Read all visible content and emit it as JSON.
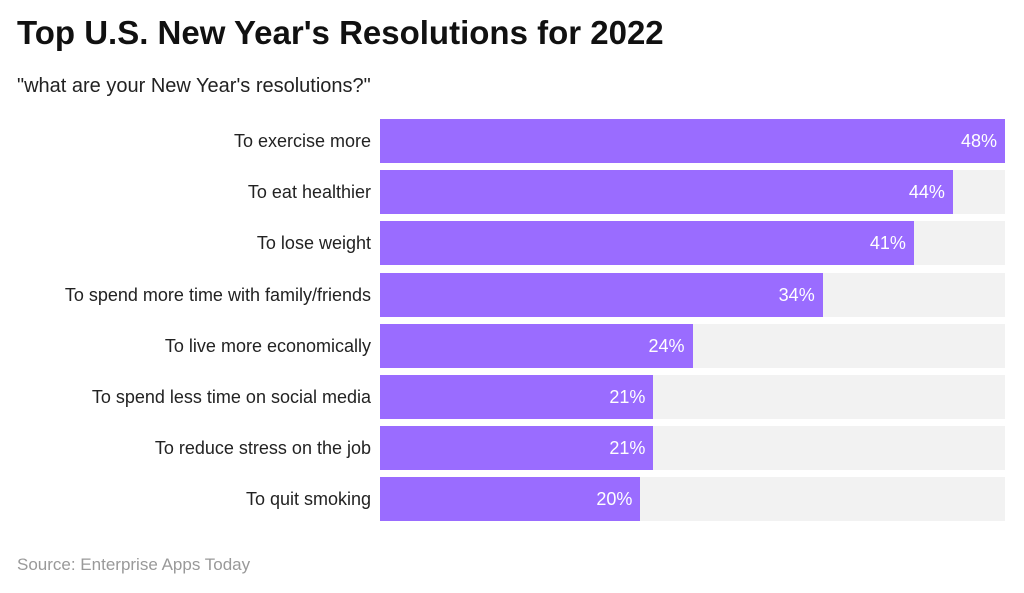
{
  "title": "Top U.S. New Year's Resolutions for 2022",
  "subtitle": "\"what are your New Year's resolutions?\"",
  "source": "Source: Enterprise Apps Today",
  "colors": {
    "bar": "#9a6cff",
    "track": "#f2f2f2"
  },
  "chart_data": {
    "type": "bar",
    "orientation": "horizontal",
    "title": "Top U.S. New Year's Resolutions for 2022",
    "subtitle": "\"what are your New Year's resolutions?\"",
    "categories": [
      "To exercise more",
      "To eat healthier",
      "To lose weight",
      "To spend more time with family/friends",
      "To live more economically",
      "To spend less time on social media",
      "To reduce stress on the job",
      "To quit smoking"
    ],
    "values": [
      48,
      44,
      41,
      34,
      24,
      21,
      21,
      20
    ],
    "labels": [
      "48%",
      "44%",
      "41%",
      "34%",
      "24%",
      "21%",
      "21%",
      "20%"
    ],
    "xlim": [
      0,
      48
    ],
    "grid": false
  }
}
